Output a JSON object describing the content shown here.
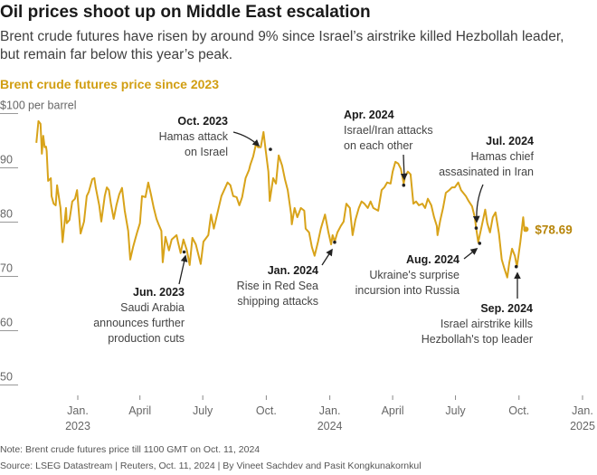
{
  "header": {
    "title": "Oil prices shoot up on Middle East escalation",
    "subtitle_line1": "Brent crude futures have risen by around 9% since Israel’s airstrike killed Hezbollah leader,",
    "subtitle_line2": "but remain far below this year’s peak."
  },
  "footer": {
    "note": "Note: Brent crude futures price till 1100 GMT on Oct. 11, 2024",
    "source": "Source: LSEG Datastream | Reuters, Oct. 11, 2024 | By Vineet Sachdev and Pasit Kongkunakornkul"
  },
  "chart_data": {
    "type": "line",
    "title": "Brent crude futures price since 2023",
    "ylabel": "per barrel",
    "y_unit_prefix": "$",
    "ylim": [
      50,
      100
    ],
    "yticks": [
      100,
      90,
      80,
      70,
      60,
      50
    ],
    "ytick_labels": [
      "$100",
      "90",
      "80",
      "70",
      "60",
      "50"
    ],
    "xlim": [
      "2022-11-01",
      "2025-01-01"
    ],
    "xticks": [
      {
        "date": "2023-01-01",
        "label": "Jan.",
        "year": "2023"
      },
      {
        "date": "2023-04-01",
        "label": "April",
        "year": ""
      },
      {
        "date": "2023-07-01",
        "label": "July",
        "year": ""
      },
      {
        "date": "2023-10-01",
        "label": "Oct.",
        "year": ""
      },
      {
        "date": "2024-01-01",
        "label": "Jan.",
        "year": "2024"
      },
      {
        "date": "2024-04-01",
        "label": "April",
        "year": ""
      },
      {
        "date": "2024-07-01",
        "label": "July",
        "year": ""
      },
      {
        "date": "2024-10-01",
        "label": "Oct.",
        "year": ""
      },
      {
        "date": "2025-01-01",
        "label": "Jan.",
        "year": "2025"
      }
    ],
    "grid": false,
    "colors": {
      "line": "#d8a31a",
      "title": "#d19e12",
      "last_label": "#b8860b",
      "annotation": "#222222"
    },
    "last_value_label": "$78.69",
    "series": [
      {
        "x": [
          "2022-11-02",
          "2022-11-05",
          "2022-11-08",
          "2022-11-10",
          "2022-11-12",
          "2022-11-14",
          "2022-11-16",
          "2022-11-17",
          "2022-11-19",
          "2022-11-23",
          "2022-11-24",
          "2022-11-27",
          "2022-11-30",
          "2022-12-02",
          "2022-12-07",
          "2022-12-10",
          "2022-12-15",
          "2022-12-16",
          "2022-12-20",
          "2022-12-24",
          "2022-12-28",
          "2022-12-31",
          "2023-01-02",
          "2023-01-05",
          "2023-01-10",
          "2023-01-14",
          "2023-01-17",
          "2023-01-22",
          "2023-01-25",
          "2023-01-27",
          "2023-02-01",
          "2023-02-04",
          "2023-02-09",
          "2023-02-12",
          "2023-02-15",
          "2023-02-18",
          "2023-02-22",
          "2023-02-26",
          "2023-03-02",
          "2023-03-06",
          "2023-03-10",
          "2023-03-15",
          "2023-03-18",
          "2023-03-22",
          "2023-03-25",
          "2023-03-28",
          "2023-04-01",
          "2023-04-04",
          "2023-04-09",
          "2023-04-13",
          "2023-04-17",
          "2023-04-21",
          "2023-04-25",
          "2023-04-28",
          "2023-05-02",
          "2023-05-04",
          "2023-05-08",
          "2023-05-13",
          "2023-05-17",
          "2023-05-24",
          "2023-05-26",
          "2023-05-30",
          "2023-06-03",
          "2023-06-08",
          "2023-06-12",
          "2023-06-16",
          "2023-06-21",
          "2023-06-28",
          "2023-07-02",
          "2023-07-09",
          "2023-07-13",
          "2023-07-17",
          "2023-07-24",
          "2023-07-28",
          "2023-08-01",
          "2023-08-06",
          "2023-08-10",
          "2023-08-14",
          "2023-08-19",
          "2023-08-23",
          "2023-08-27",
          "2023-09-01",
          "2023-09-06",
          "2023-09-08",
          "2023-09-12",
          "2023-09-16",
          "2023-09-19",
          "2023-09-23",
          "2023-09-27",
          "2023-09-30",
          "2023-10-04",
          "2023-10-06",
          "2023-10-11",
          "2023-10-15",
          "2023-10-19",
          "2023-10-24",
          "2023-10-28",
          "2023-11-01",
          "2023-11-06",
          "2023-11-07",
          "2023-11-11",
          "2023-11-15",
          "2023-11-20",
          "2023-11-25",
          "2023-11-27",
          "2023-12-02",
          "2023-12-06",
          "2023-12-10",
          "2023-12-15",
          "2023-12-19",
          "2023-12-25",
          "2023-12-30",
          "2024-01-03",
          "2024-01-05",
          "2024-01-08",
          "2024-01-12",
          "2024-01-17",
          "2024-01-21",
          "2024-01-25",
          "2024-01-30",
          "2024-02-03",
          "2024-02-07",
          "2024-02-12",
          "2024-02-16",
          "2024-02-20",
          "2024-02-25",
          "2024-02-29",
          "2024-03-04",
          "2024-03-11",
          "2024-03-16",
          "2024-03-20",
          "2024-03-24",
          "2024-03-29",
          "2024-04-01",
          "2024-04-05",
          "2024-04-09",
          "2024-04-13",
          "2024-04-17",
          "2024-04-19",
          "2024-04-23",
          "2024-04-27",
          "2024-05-01",
          "2024-05-05",
          "2024-05-09",
          "2024-05-14",
          "2024-05-18",
          "2024-05-22",
          "2024-05-27",
          "2024-05-31",
          "2024-06-04",
          "2024-06-05",
          "2024-06-09",
          "2024-06-13",
          "2024-06-17",
          "2024-06-22",
          "2024-06-26",
          "2024-06-30",
          "2024-07-05",
          "2024-07-09",
          "2024-07-16",
          "2024-07-20",
          "2024-07-25",
          "2024-07-29",
          "2024-07-31",
          "2024-08-03",
          "2024-08-08",
          "2024-08-13",
          "2024-08-16",
          "2024-08-20",
          "2024-08-24",
          "2024-08-28",
          "2024-09-02",
          "2024-09-06",
          "2024-09-10",
          "2024-09-14",
          "2024-09-17",
          "2024-09-21",
          "2024-09-25",
          "2024-09-28",
          "2024-10-03",
          "2024-10-07",
          "2024-10-09",
          "2024-10-11"
        ],
        "y": [
          94.6,
          98.6,
          98.1,
          92.6,
          95.9,
          93.8,
          93.9,
          93.1,
          87.6,
          88.1,
          84.8,
          83.4,
          83.1,
          86.8,
          82.6,
          76.3,
          82.6,
          79.8,
          80.4,
          83.8,
          84.3,
          85.9,
          82.6,
          77.9,
          80.1,
          84.8,
          85.6,
          87.9,
          88.1,
          86.4,
          83.1,
          80.1,
          84.8,
          86.4,
          85.9,
          83.4,
          80.6,
          83.1,
          85.1,
          86.3,
          82.1,
          78.4,
          73.1,
          75.4,
          76.8,
          78.1,
          79.8,
          84.8,
          84.6,
          87.3,
          85.1,
          82.6,
          80.6,
          79.6,
          78.4,
          72.6,
          77.3,
          74.8,
          76.8,
          77.6,
          76.4,
          74.3,
          76.8,
          74.8,
          72.1,
          77.1,
          75.9,
          72.3,
          76.4,
          77.6,
          81.4,
          78.8,
          82.6,
          84.8,
          85.9,
          87.3,
          86.8,
          84.8,
          84.6,
          83.1,
          84.6,
          88.1,
          89.6,
          90.6,
          92.1,
          94.3,
          93.8,
          93.8,
          96.6,
          93.4,
          89.3,
          83.9,
          88.1,
          87.1,
          92.3,
          90.4,
          87.9,
          85.9,
          81.4,
          79.6,
          82.6,
          80.9,
          82.6,
          82.1,
          78.8,
          78.1,
          75.4,
          73.8,
          76.4,
          78.8,
          81.4,
          78.1,
          75.9,
          77.6,
          76.4,
          78.1,
          79.3,
          80.1,
          83.4,
          82.6,
          77.6,
          80.4,
          82.6,
          83.8,
          83.4,
          82.6,
          83.8,
          82.6,
          82.1,
          85.9,
          86.4,
          87.3,
          87.1,
          89.3,
          91.1,
          90.8,
          89.8,
          87.1,
          88.4,
          89.3,
          88.8,
          83.4,
          83.8,
          83.1,
          83.4,
          82.6,
          84.3,
          83.1,
          80.9,
          79.3,
          77.6,
          80.4,
          82.6,
          85.4,
          85.9,
          86.4,
          86.4,
          87.3,
          85.9,
          84.8,
          83.9,
          82.9,
          80.9,
          78.9,
          76.3,
          79.3,
          82.3,
          79.8,
          78.1,
          80.9,
          81.8,
          77.9,
          73.1,
          71.4,
          69.8,
          72.6,
          75.1,
          73.8,
          71.8,
          76.4,
          80.9,
          78.4,
          78.69
        ]
      }
    ],
    "annotations": [
      {
        "date": "2023-06-04",
        "price": 74.5,
        "heading": "Jun. 2023",
        "lines": [
          "Saudi Arabia",
          "announces further",
          "production cuts"
        ]
      },
      {
        "date": "2023-10-07",
        "price": 93.4,
        "heading": "Oct. 2023",
        "lines": [
          "Hamas attack",
          "on Israel"
        ]
      },
      {
        "date": "2024-01-08",
        "price": 76.3,
        "heading": "Jan. 2024",
        "lines": [
          "Rise in Red Sea",
          "shipping attacks"
        ]
      },
      {
        "date": "2024-04-17",
        "price": 86.8,
        "heading": "Apr. 2024",
        "lines": [
          "Israel/Iran attacks",
          "on each other"
        ]
      },
      {
        "date": "2024-07-31",
        "price": 78.9,
        "heading": "Jul. 2024",
        "lines": [
          "Hamas chief",
          "assasinated in Iran"
        ]
      },
      {
        "date": "2024-08-05",
        "price": 76.1,
        "heading": "Aug. 2024",
        "lines": [
          "Ukraine's surprise",
          "incursion into Russia"
        ]
      },
      {
        "date": "2024-09-27",
        "price": 71.8,
        "heading": "Sep. 2024",
        "lines": [
          "Israel airstrike kills",
          "Hezbollah's top leader"
        ]
      }
    ]
  }
}
